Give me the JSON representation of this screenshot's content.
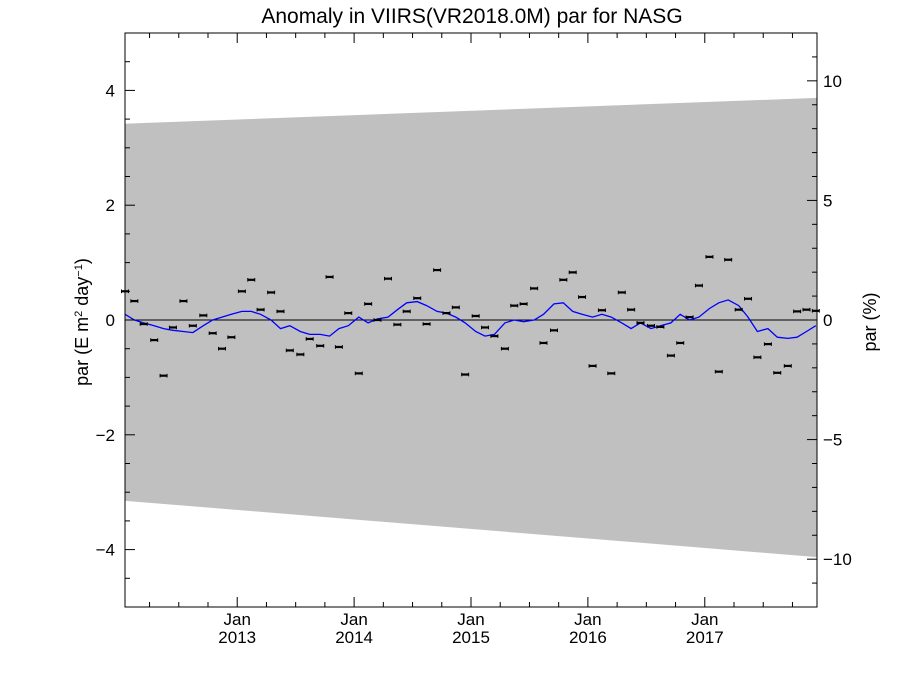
{
  "chart_data": {
    "type": "scatter",
    "title": "Anomaly in VIIRS(VR2018.0M) par for NASG",
    "ylabel_left_parts": [
      "par (E m",
      "2",
      " day",
      "−1",
      ")"
    ],
    "ylabel_right": "par (%)",
    "x_ticks": [
      {
        "month": "Jan",
        "year": "2013",
        "value": 2013.0
      },
      {
        "month": "Jan",
        "year": "2014",
        "value": 2014.0
      },
      {
        "month": "Jan",
        "year": "2015",
        "value": 2015.0
      },
      {
        "month": "Jan",
        "year": "2016",
        "value": 2016.0
      },
      {
        "month": "Jan",
        "year": "2017",
        "value": 2017.0
      }
    ],
    "y_left_ticks": [
      {
        "value": 4,
        "label": "4"
      },
      {
        "value": 2,
        "label": "2"
      },
      {
        "value": 0,
        "label": "0"
      },
      {
        "value": -2,
        "label": "−2"
      },
      {
        "value": -4,
        "label": "−4"
      }
    ],
    "y_right_ticks": [
      {
        "value": 10,
        "label": "10"
      },
      {
        "value": 5,
        "label": "5"
      },
      {
        "value": 0,
        "label": "0"
      },
      {
        "value": -5,
        "label": "−5"
      },
      {
        "value": -10,
        "label": "−10"
      }
    ],
    "xlim": [
      2012.04,
      2017.96
    ],
    "ylim_left": [
      -5,
      5
    ],
    "ylim_right": [
      -12,
      12
    ],
    "envelope": {
      "color": "#c0c0c0",
      "upper": [
        [
          2012.04,
          3.42
        ],
        [
          2017.96,
          3.87
        ]
      ],
      "lower": [
        [
          2012.04,
          -3.15
        ],
        [
          2017.96,
          -4.13
        ]
      ]
    },
    "zero_line": 0,
    "series": [
      {
        "kind": "monthly_anomaly_points",
        "color": "#000000",
        "x": [
          2012.04,
          2012.12,
          2012.2,
          2012.29,
          2012.37,
          2012.45,
          2012.54,
          2012.62,
          2012.71,
          2012.79,
          2012.87,
          2012.95,
          2013.04,
          2013.12,
          2013.2,
          2013.29,
          2013.37,
          2013.45,
          2013.54,
          2013.62,
          2013.71,
          2013.79,
          2013.87,
          2013.95,
          2014.04,
          2014.12,
          2014.2,
          2014.29,
          2014.37,
          2014.45,
          2014.54,
          2014.62,
          2014.71,
          2014.79,
          2014.87,
          2014.95,
          2015.04,
          2015.12,
          2015.2,
          2015.29,
          2015.37,
          2015.45,
          2015.54,
          2015.62,
          2015.71,
          2015.79,
          2015.87,
          2015.95,
          2016.04,
          2016.12,
          2016.2,
          2016.29,
          2016.37,
          2016.45,
          2016.54,
          2016.62,
          2016.71,
          2016.79,
          2016.87,
          2016.95,
          2017.04,
          2017.12,
          2017.2,
          2017.29,
          2017.37,
          2017.45,
          2017.54,
          2017.62,
          2017.71,
          2017.79,
          2017.87,
          2017.95
        ],
        "y": [
          0.5,
          0.33,
          -0.07,
          -0.35,
          -0.97,
          -0.13,
          0.33,
          -0.1,
          0.08,
          -0.23,
          -0.5,
          -0.3,
          0.5,
          0.7,
          0.18,
          0.48,
          0.15,
          -0.53,
          -0.6,
          -0.33,
          -0.45,
          0.75,
          -0.47,
          0.12,
          -0.93,
          0.28,
          0.0,
          0.72,
          -0.08,
          0.15,
          0.38,
          -0.07,
          0.87,
          0.12,
          0.22,
          -0.95,
          0.07,
          -0.13,
          -0.28,
          -0.5,
          0.25,
          0.28,
          0.55,
          -0.4,
          -0.18,
          0.7,
          0.83,
          0.4,
          -0.8,
          0.17,
          -0.93,
          0.48,
          0.18,
          -0.05,
          -0.1,
          -0.12,
          -0.62,
          -0.4,
          0.05,
          0.6,
          1.1,
          -0.9,
          1.05,
          0.18,
          0.37,
          -0.65,
          -0.42,
          -0.92,
          -0.8,
          0.15,
          0.18,
          0.16
        ]
      },
      {
        "kind": "smoothed",
        "color": "#0000ff",
        "x": [
          2012.04,
          2012.12,
          2012.2,
          2012.29,
          2012.37,
          2012.45,
          2012.54,
          2012.62,
          2012.71,
          2012.79,
          2012.87,
          2012.95,
          2013.04,
          2013.12,
          2013.2,
          2013.29,
          2013.37,
          2013.45,
          2013.54,
          2013.62,
          2013.71,
          2013.79,
          2013.87,
          2013.95,
          2014.04,
          2014.12,
          2014.2,
          2014.29,
          2014.37,
          2014.45,
          2014.54,
          2014.62,
          2014.71,
          2014.79,
          2014.87,
          2014.95,
          2015.04,
          2015.12,
          2015.2,
          2015.29,
          2015.37,
          2015.45,
          2015.54,
          2015.62,
          2015.71,
          2015.79,
          2015.87,
          2015.95,
          2016.04,
          2016.12,
          2016.2,
          2016.29,
          2016.37,
          2016.45,
          2016.54,
          2016.62,
          2016.71,
          2016.79,
          2016.87,
          2016.95,
          2017.04,
          2017.12,
          2017.2,
          2017.29,
          2017.37,
          2017.45,
          2017.54,
          2017.62,
          2017.71,
          2017.79,
          2017.87,
          2017.95
        ],
        "y": [
          0.1,
          0.0,
          -0.05,
          -0.1,
          -0.15,
          -0.18,
          -0.2,
          -0.22,
          -0.1,
          0.0,
          0.05,
          0.1,
          0.15,
          0.15,
          0.1,
          0.0,
          -0.15,
          -0.1,
          -0.2,
          -0.25,
          -0.25,
          -0.28,
          -0.15,
          -0.1,
          0.05,
          -0.05,
          0.02,
          0.05,
          0.18,
          0.3,
          0.32,
          0.25,
          0.15,
          0.12,
          0.05,
          -0.05,
          -0.2,
          -0.28,
          -0.25,
          -0.05,
          0.0,
          -0.03,
          0.0,
          0.1,
          0.28,
          0.3,
          0.15,
          0.1,
          0.05,
          0.1,
          0.05,
          -0.05,
          -0.15,
          -0.05,
          -0.15,
          -0.1,
          -0.05,
          0.1,
          0.0,
          0.05,
          0.2,
          0.3,
          0.35,
          0.25,
          0.05,
          -0.2,
          -0.15,
          -0.3,
          -0.32,
          -0.3,
          -0.2,
          -0.1
        ]
      }
    ],
    "grid": false,
    "legend": "none"
  }
}
